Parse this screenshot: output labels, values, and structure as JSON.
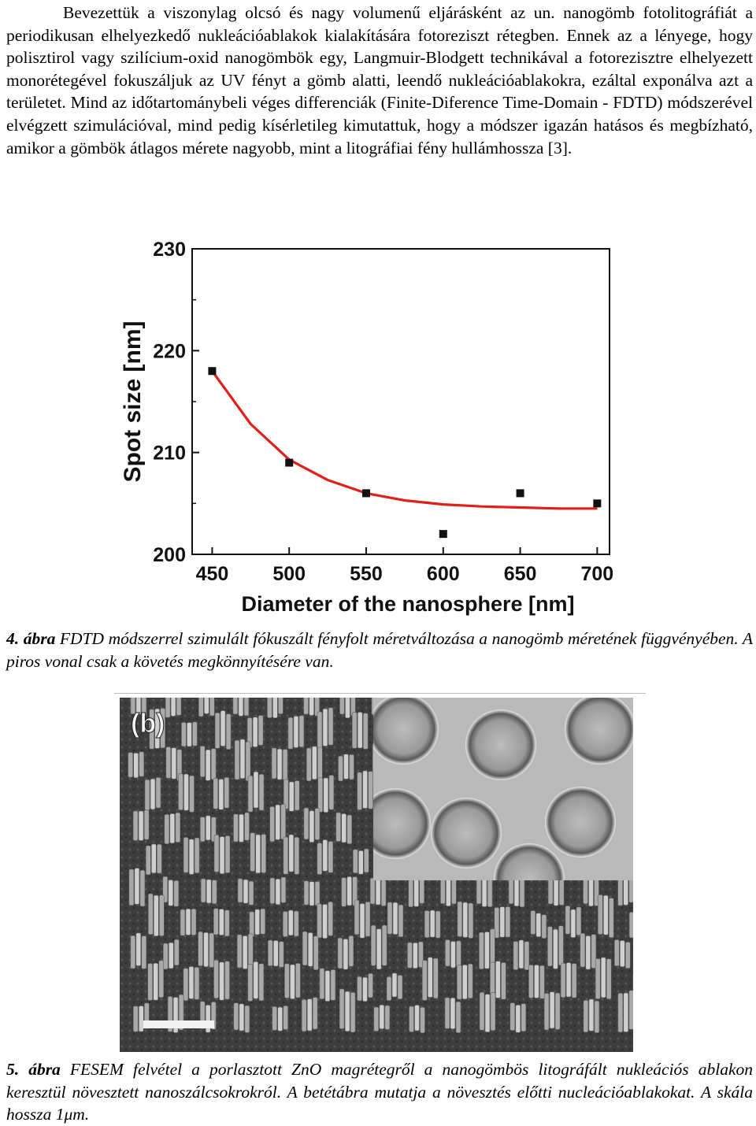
{
  "body_text": "Bevezettük a viszonylag olcsó és nagy volumenű eljárásként az un. nanogömb fotolitográfiát a periodikusan elhelyezkedő nukleációablakok kialakítására fotoreziszt rétegben. Ennek az a lényege, hogy polisztirol vagy szilícium-oxid nanogömbök egy, Langmuir-Blodgett technikával a fotorezisztre elhelyezett monorétegével fokuszáljuk az UV fényt a gömb alatti, leendő nukleációablakokra, ezáltal exponálva azt a területet. Mind az időtartománybeli véges differenciák (Finite-Diference Time-Domain - FDTD) módszerével elvégzett szimulációval, mind pedig kísérletileg kimutattuk, hogy a módszer igazán hatásos és megbízható, amikor a gömbök átlagos mérete nagyobb, mint a litográfiai fény hullámhossza [3].",
  "chart_data": {
    "type": "scatter",
    "xlabel": "Diameter of the nanosphere [nm]",
    "ylabel": "Spot size [nm]",
    "xlim": [
      437,
      708
    ],
    "ylim": [
      200,
      230
    ],
    "x_ticks": [
      "450",
      "500",
      "550",
      "600",
      "650",
      "700"
    ],
    "y_ticks": [
      "200",
      "210",
      "220",
      "230"
    ],
    "points": {
      "x": [
        450,
        500,
        550,
        600,
        650,
        700
      ],
      "y": [
        218,
        209,
        206,
        202,
        206,
        205
      ]
    },
    "fit_curve": {
      "color": "#e0201b",
      "x": [
        450,
        475,
        500,
        525,
        550,
        575,
        600,
        625,
        650,
        675,
        700
      ],
      "y": [
        218.0,
        212.8,
        209.3,
        207.3,
        206.0,
        205.3,
        204.9,
        204.7,
        204.6,
        204.5,
        204.5
      ]
    },
    "marker_color": "#111111"
  },
  "fig4": {
    "number": "4. ábra",
    "text": "FDTD módszerrel szimulált fókuszált fényfolt méretváltozása a nanogömb méretének függvényében. A piros vonal csak a követés megkönnyítésére van."
  },
  "fig5": {
    "panel_label": "(b)",
    "number": "5. ábra",
    "text": "FESEM felvétel a porlasztott ZnO magrétegről a nanogömbös litográfált nukleációs ablakon keresztül növesztett nanoszálcsokrokról. A betétábra mutatja a növesztés előtti nucleációablakokat. A skála hossza 1μm."
  }
}
